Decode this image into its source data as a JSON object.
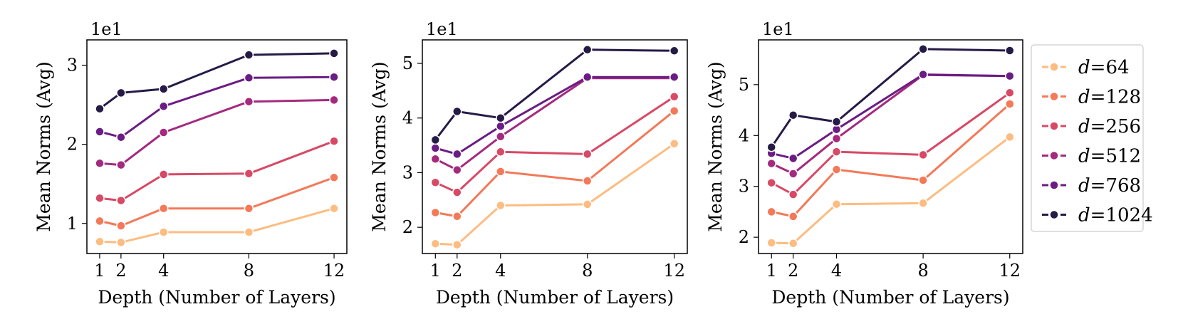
{
  "chart_data": [
    {
      "type": "line",
      "xlabel": "Depth (Number of Layers)",
      "ylabel": "Mean Norms (Avg)",
      "scale_label": "1e1",
      "x": [
        1,
        2,
        4,
        8,
        12
      ],
      "xticks": [
        "1",
        "2",
        "4",
        "8",
        "12"
      ],
      "xlim": [
        0.4,
        12.6
      ],
      "ylim": [
        0.62,
        3.32
      ],
      "yticks": [
        1,
        2,
        3
      ],
      "ytick_labels": [
        "1",
        "2",
        "3"
      ],
      "series": [
        {
          "name": "d=64",
          "values": [
            0.77,
            0.76,
            0.89,
            0.89,
            1.19
          ]
        },
        {
          "name": "d=128",
          "values": [
            1.03,
            0.97,
            1.19,
            1.19,
            1.58
          ]
        },
        {
          "name": "d=256",
          "values": [
            1.32,
            1.29,
            1.62,
            1.63,
            2.04
          ]
        },
        {
          "name": "d=512",
          "values": [
            1.76,
            1.74,
            2.15,
            2.54,
            2.56
          ]
        },
        {
          "name": "d=768",
          "values": [
            2.16,
            2.09,
            2.48,
            2.84,
            2.85
          ]
        },
        {
          "name": "d=1024",
          "values": [
            2.45,
            2.65,
            2.7,
            3.13,
            3.15
          ]
        }
      ]
    },
    {
      "type": "line",
      "xlabel": "Depth (Number of Layers)",
      "ylabel": "Mean Norms (Avg)",
      "scale_label": "1e1",
      "x": [
        1,
        2,
        4,
        8,
        12
      ],
      "xticks": [
        "1",
        "2",
        "4",
        "8",
        "12"
      ],
      "xlim": [
        0.4,
        12.6
      ],
      "ylim": [
        1.52,
        5.43
      ],
      "yticks": [
        2,
        3,
        4,
        5
      ],
      "ytick_labels": [
        "2",
        "3",
        "4",
        "5"
      ],
      "series": [
        {
          "name": "d=64",
          "values": [
            1.7,
            1.68,
            2.4,
            2.42,
            3.53
          ]
        },
        {
          "name": "d=128",
          "values": [
            2.27,
            2.2,
            3.02,
            2.85,
            4.13
          ]
        },
        {
          "name": "d=256",
          "values": [
            2.82,
            2.64,
            3.38,
            3.34,
            4.39
          ]
        },
        {
          "name": "d=512",
          "values": [
            3.25,
            3.05,
            3.66,
            4.73,
            4.73
          ]
        },
        {
          "name": "d=768",
          "values": [
            3.45,
            3.34,
            3.85,
            4.75,
            4.75
          ]
        },
        {
          "name": "d=1024",
          "values": [
            3.6,
            4.12,
            4.0,
            5.25,
            5.23
          ]
        }
      ]
    },
    {
      "type": "line",
      "xlabel": "Depth (Number of Layers)",
      "ylabel": "Mean Norms (Avg)",
      "scale_label": "1e1",
      "x": [
        1,
        2,
        4,
        8,
        12
      ],
      "xticks": [
        "1",
        "2",
        "4",
        "8",
        "12"
      ],
      "xlim": [
        0.4,
        12.6
      ],
      "ylim": [
        1.68,
        5.88
      ],
      "yticks": [
        2,
        3,
        4,
        5
      ],
      "ytick_labels": [
        "2",
        "3",
        "4",
        "5"
      ],
      "series": [
        {
          "name": "d=64",
          "values": [
            1.89,
            1.88,
            2.65,
            2.67,
            3.97
          ]
        },
        {
          "name": "d=128",
          "values": [
            2.5,
            2.41,
            3.33,
            3.12,
            4.62
          ]
        },
        {
          "name": "d=256",
          "values": [
            3.07,
            2.84,
            3.68,
            3.62,
            4.84
          ]
        },
        {
          "name": "d=512",
          "values": [
            3.45,
            3.25,
            3.94,
            5.19,
            5.17
          ]
        },
        {
          "name": "d=768",
          "values": [
            3.65,
            3.55,
            4.12,
            5.2,
            5.17
          ]
        },
        {
          "name": "d=1024",
          "values": [
            3.77,
            4.4,
            4.27,
            5.7,
            5.67
          ]
        }
      ]
    }
  ],
  "legend": {
    "placement": "right",
    "entries": [
      {
        "prefix": "d",
        "suffix": "=64",
        "color": "#fdbc81"
      },
      {
        "prefix": "d",
        "suffix": "=128",
        "color": "#f37959"
      },
      {
        "prefix": "d",
        "suffix": "=256",
        "color": "#d74965"
      },
      {
        "prefix": "d",
        "suffix": "=512",
        "color": "#a42a7e"
      },
      {
        "prefix": "d",
        "suffix": "=768",
        "color": "#6a1d83"
      },
      {
        "prefix": "d",
        "suffix": "=1024",
        "color": "#261a46"
      }
    ]
  }
}
